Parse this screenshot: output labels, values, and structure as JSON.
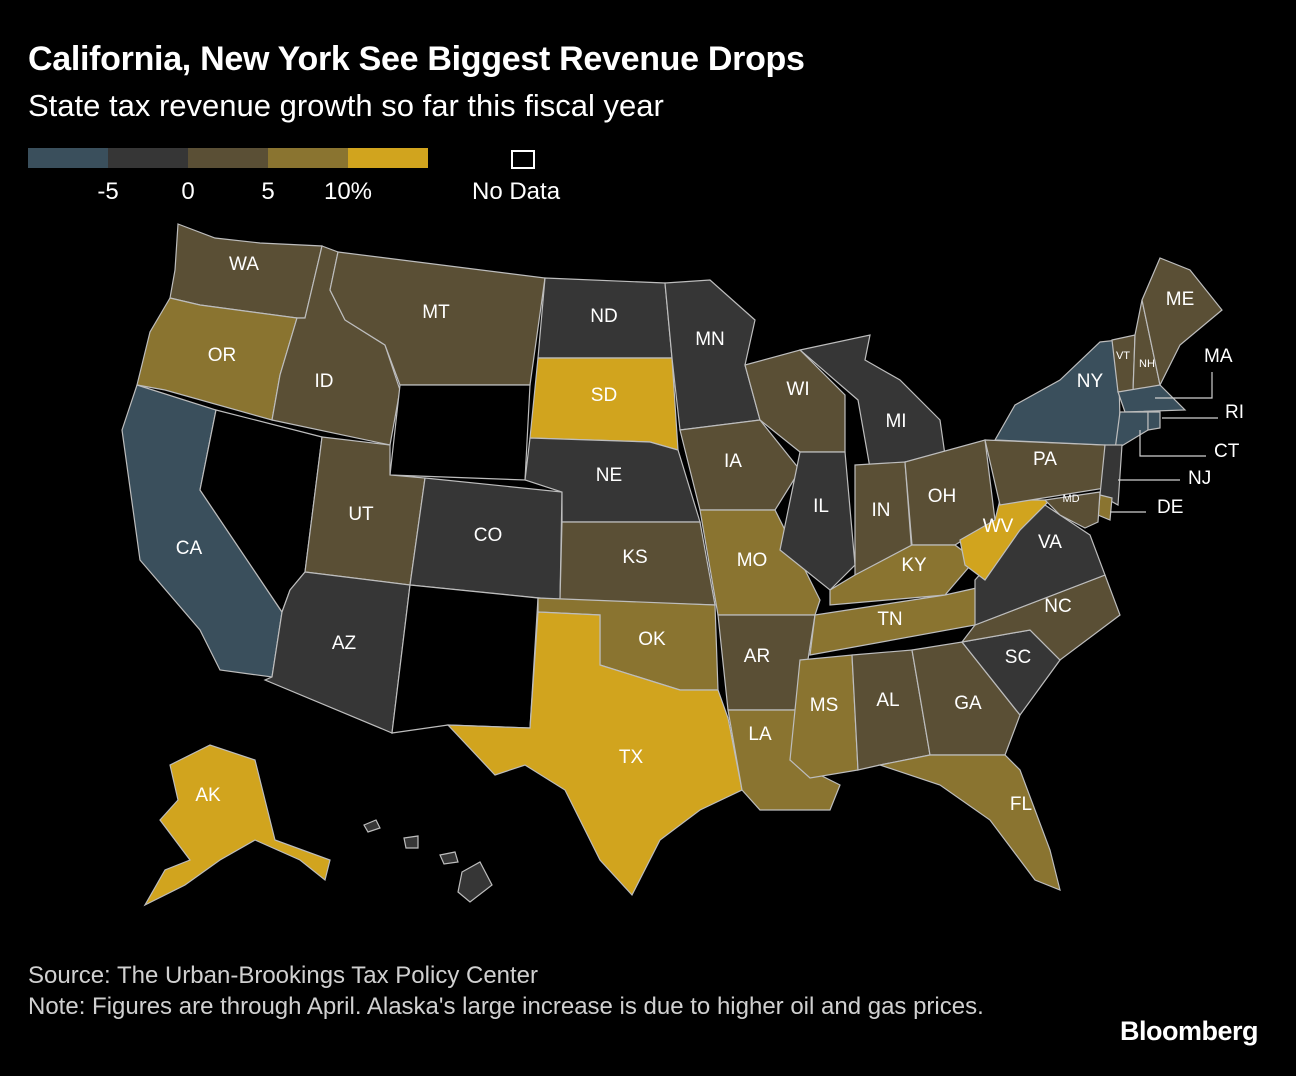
{
  "title": "California, New York See Biggest Revenue Drops",
  "subtitle": "State tax revenue growth so far this fiscal year",
  "legend": {
    "colors": [
      "#3a4f5c",
      "#363636",
      "#5a4f35",
      "#8a7430",
      "#d1a41e"
    ],
    "ticks": [
      "-5",
      "0",
      "5",
      "10%"
    ],
    "no_data": "No Data"
  },
  "states": {
    "WA": {
      "label": "WA",
      "bin": 2
    },
    "OR": {
      "label": "OR",
      "bin": 3
    },
    "CA": {
      "label": "CA",
      "bin": 0
    },
    "ID": {
      "label": "ID",
      "bin": 2
    },
    "NV": {
      "label": "",
      "bin": -1
    },
    "MT": {
      "label": "MT",
      "bin": 2
    },
    "WY": {
      "label": "",
      "bin": -1
    },
    "UT": {
      "label": "UT",
      "bin": 2
    },
    "AZ": {
      "label": "AZ",
      "bin": 1
    },
    "CO": {
      "label": "CO",
      "bin": 1
    },
    "NM": {
      "label": "",
      "bin": -1
    },
    "ND": {
      "label": "ND",
      "bin": 1
    },
    "SD": {
      "label": "SD",
      "bin": 4
    },
    "NE": {
      "label": "NE",
      "bin": 1
    },
    "KS": {
      "label": "KS",
      "bin": 2
    },
    "OK": {
      "label": "OK",
      "bin": 3
    },
    "TX": {
      "label": "TX",
      "bin": 4
    },
    "MN": {
      "label": "MN",
      "bin": 1
    },
    "IA": {
      "label": "IA",
      "bin": 2
    },
    "MO": {
      "label": "MO",
      "bin": 3
    },
    "AR": {
      "label": "AR",
      "bin": 2
    },
    "LA": {
      "label": "LA",
      "bin": 3
    },
    "WI": {
      "label": "WI",
      "bin": 2
    },
    "IL": {
      "label": "IL",
      "bin": 1
    },
    "MI": {
      "label": "MI",
      "bin": 1
    },
    "IN": {
      "label": "IN",
      "bin": 2
    },
    "OH": {
      "label": "OH",
      "bin": 2
    },
    "KY": {
      "label": "KY",
      "bin": 3
    },
    "TN": {
      "label": "TN",
      "bin": 3
    },
    "MS": {
      "label": "MS",
      "bin": 3
    },
    "AL": {
      "label": "AL",
      "bin": 2
    },
    "GA": {
      "label": "GA",
      "bin": 2
    },
    "FL": {
      "label": "FL",
      "bin": 3
    },
    "SC": {
      "label": "SC",
      "bin": 1
    },
    "NC": {
      "label": "NC",
      "bin": 2
    },
    "VA": {
      "label": "VA",
      "bin": 1
    },
    "WV": {
      "label": "WV",
      "bin": 4
    },
    "PA": {
      "label": "PA",
      "bin": 2
    },
    "NY": {
      "label": "NY",
      "bin": 0
    },
    "VT": {
      "label": "VT",
      "bin": 2
    },
    "NH": {
      "label": "NH",
      "bin": 2
    },
    "ME": {
      "label": "ME",
      "bin": 2
    },
    "MA": {
      "label": "MA",
      "bin": 0
    },
    "RI": {
      "label": "RI",
      "bin": 0
    },
    "CT": {
      "label": "CT",
      "bin": 0
    },
    "NJ": {
      "label": "NJ",
      "bin": 1
    },
    "DE": {
      "label": "DE",
      "bin": 3
    },
    "MD": {
      "label": "MD",
      "bin": 2
    },
    "AK": {
      "label": "AK",
      "bin": 4
    },
    "HI": {
      "label": "",
      "bin": 1
    }
  },
  "source": "Source: The Urban-Brookings Tax Policy Center",
  "note": "Note: Figures are through April. Alaska's large increase is due to higher oil and gas prices.",
  "brand": "Bloomberg"
}
